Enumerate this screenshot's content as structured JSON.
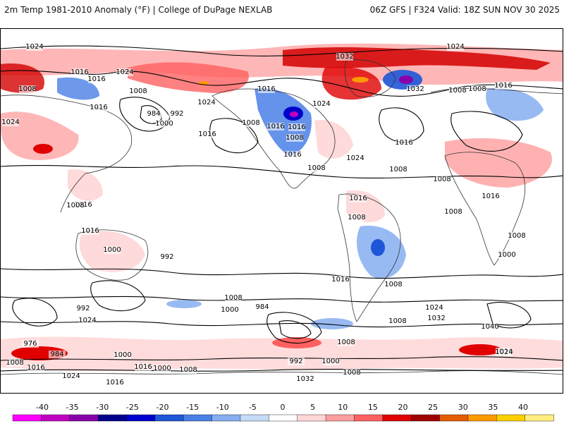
{
  "header": {
    "title": "2m Temp 1981-2010 Anomaly (°F) | College of DuPage NEXLAB",
    "run_info": "06Z GFS | F324 Valid: 18Z SUN NOV 30 2025"
  },
  "legend": {
    "ticks": [
      "-40",
      "-35",
      "-30",
      "-25",
      "-20",
      "-15",
      "-10",
      "-5",
      "0",
      "5",
      "10",
      "15",
      "20",
      "25",
      "30",
      "35",
      "40"
    ],
    "colors": [
      "#ff00ff",
      "#c000c0",
      "#8800aa",
      "#00008b",
      "#0000cd",
      "#1e56d8",
      "#4a7fe6",
      "#86aef0",
      "#c6dbf8",
      "#ffffff",
      "#ffd6d6",
      "#ff9e9e",
      "#ff6060",
      "#e00000",
      "#a00000",
      "#e65c00",
      "#ff9900",
      "#ffd000",
      "#ffee80"
    ]
  },
  "isobar_labels": [
    {
      "text": "1024"
    },
    {
      "text": "1024"
    },
    {
      "text": "1024"
    },
    {
      "text": "1032"
    },
    {
      "text": "1016"
    },
    {
      "text": "1016"
    },
    {
      "text": "1008"
    },
    {
      "text": "1008"
    },
    {
      "text": "1016"
    },
    {
      "text": "984"
    },
    {
      "text": "992"
    },
    {
      "text": "1000"
    },
    {
      "text": "1024"
    },
    {
      "text": "1008"
    },
    {
      "text": "1016"
    },
    {
      "text": "1016"
    },
    {
      "text": "1032"
    },
    {
      "text": "1008"
    },
    {
      "text": "1016"
    },
    {
      "text": "1008"
    },
    {
      "text": "1024"
    },
    {
      "text": "1024"
    },
    {
      "text": "1016"
    },
    {
      "text": "1016"
    },
    {
      "text": "1008"
    },
    {
      "text": "1016"
    },
    {
      "text": "1008"
    },
    {
      "text": "1024"
    },
    {
      "text": "1016"
    },
    {
      "text": "1008"
    },
    {
      "text": "1008"
    },
    {
      "text": "1008"
    },
    {
      "text": "1016"
    },
    {
      "text": "1008"
    },
    {
      "text": "1016"
    },
    {
      "text": "1016"
    },
    {
      "text": "1008"
    },
    {
      "text": "1016"
    },
    {
      "text": "1008"
    },
    {
      "text": "1000"
    },
    {
      "text": "1016"
    },
    {
      "text": "1000"
    },
    {
      "text": "1008"
    },
    {
      "text": "992"
    },
    {
      "text": "1008"
    },
    {
      "text": "984"
    },
    {
      "text": "1000"
    },
    {
      "text": "992"
    },
    {
      "text": "1032"
    },
    {
      "text": "1024"
    },
    {
      "text": "1040"
    },
    {
      "text": "1024"
    },
    {
      "text": "1016"
    },
    {
      "text": "1008"
    },
    {
      "text": "1008"
    },
    {
      "text": "976"
    },
    {
      "text": "984"
    },
    {
      "text": "1000"
    },
    {
      "text": "992"
    },
    {
      "text": "1000"
    },
    {
      "text": "1008"
    },
    {
      "text": "1032"
    },
    {
      "text": "1024"
    },
    {
      "text": "1008"
    },
    {
      "text": "1016"
    },
    {
      "text": "1024"
    },
    {
      "text": "1016"
    },
    {
      "text": "1000"
    },
    {
      "text": "1016"
    },
    {
      "text": "1008"
    }
  ]
}
